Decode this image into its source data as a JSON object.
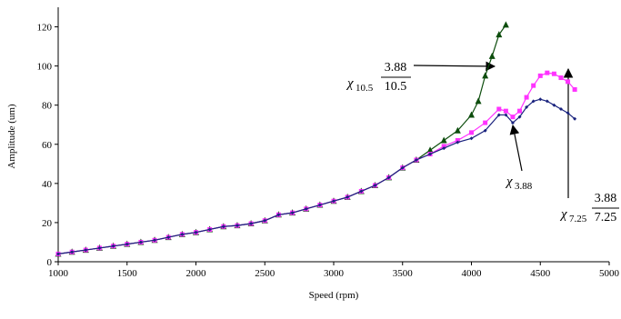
{
  "chart_data": {
    "type": "line",
    "xlabel": "Speed (rpm)",
    "ylabel": "Amplitude (um)",
    "xlim": [
      1000,
      5000
    ],
    "xticks": [
      1000,
      1500,
      2000,
      2500,
      3000,
      3500,
      4000,
      4500,
      5000
    ],
    "ylim": [
      0,
      130
    ],
    "yticks": [
      0,
      20,
      40,
      60,
      80,
      100,
      120
    ],
    "series": [
      {
        "color": "#1a237e",
        "marker": "diamond",
        "x": [
          1000,
          1100,
          1200,
          1300,
          1400,
          1500,
          1600,
          1700,
          1800,
          1900,
          2000,
          2100,
          2200,
          2300,
          2400,
          2500,
          2600,
          2700,
          2800,
          2900,
          3000,
          3100,
          3200,
          3300,
          3400,
          3500,
          3600,
          3700,
          3800,
          3900,
          4000,
          4100,
          4200,
          4250,
          4300,
          4350,
          4400,
          4450,
          4500,
          4550,
          4600,
          4650,
          4700,
          4750
        ],
        "values": [
          4,
          5,
          6,
          7,
          8,
          9,
          10,
          11,
          12.5,
          14,
          15,
          16.5,
          18,
          18.5,
          19.5,
          21,
          24,
          25,
          27,
          29,
          31,
          33,
          36,
          39,
          43,
          48,
          52,
          55,
          58,
          61,
          63,
          67,
          75,
          75,
          71,
          74,
          79,
          82,
          83,
          82,
          80,
          78,
          76,
          73
        ]
      },
      {
        "color": "#ff33ff",
        "marker": "square",
        "x": [
          1000,
          1100,
          1200,
          1300,
          1400,
          1500,
          1600,
          1700,
          1800,
          1900,
          2000,
          2100,
          2200,
          2300,
          2400,
          2500,
          2600,
          2700,
          2800,
          2900,
          3000,
          3100,
          3200,
          3300,
          3400,
          3500,
          3600,
          3700,
          3800,
          3900,
          4000,
          4100,
          4200,
          4250,
          4300,
          4350,
          4400,
          4450,
          4500,
          4550,
          4600,
          4650,
          4700,
          4750
        ],
        "values": [
          4,
          5,
          6,
          7,
          8,
          9,
          10,
          11,
          12.5,
          14,
          15,
          16.5,
          18,
          18.5,
          19.5,
          21,
          24,
          25,
          27,
          29,
          31,
          33,
          36,
          39,
          43,
          48,
          52,
          55,
          59,
          62,
          66,
          71,
          78,
          77,
          74,
          77,
          84,
          90,
          95,
          96.5,
          96,
          94,
          92,
          88
        ]
      },
      {
        "color": "#0d4d0d",
        "marker": "triangle",
        "x": [
          1000,
          1100,
          1200,
          1300,
          1400,
          1500,
          1600,
          1700,
          1800,
          1900,
          2000,
          2100,
          2200,
          2300,
          2400,
          2500,
          2600,
          2700,
          2800,
          2900,
          3000,
          3100,
          3200,
          3300,
          3400,
          3500,
          3600,
          3700,
          3800,
          3900,
          4000,
          4050,
          4100,
          4150,
          4200,
          4250
        ],
        "values": [
          4,
          5,
          6,
          7,
          8,
          9,
          10,
          11,
          12.5,
          14,
          15,
          16.5,
          18,
          18.5,
          19.5,
          21,
          24,
          25,
          27,
          29,
          31,
          33,
          36,
          39,
          43,
          48,
          52,
          57,
          62,
          67,
          75,
          82,
          95,
          105,
          116,
          121
        ]
      }
    ],
    "annotations": [
      {
        "symbol": "χ",
        "subscript": "10.5",
        "numerator": "3.88",
        "denominator": "10.5"
      },
      {
        "symbol": "χ",
        "subscript": "3.88"
      },
      {
        "symbol": "χ",
        "subscript": "7.25",
        "numerator": "3.88",
        "denominator": "7.25"
      }
    ]
  }
}
